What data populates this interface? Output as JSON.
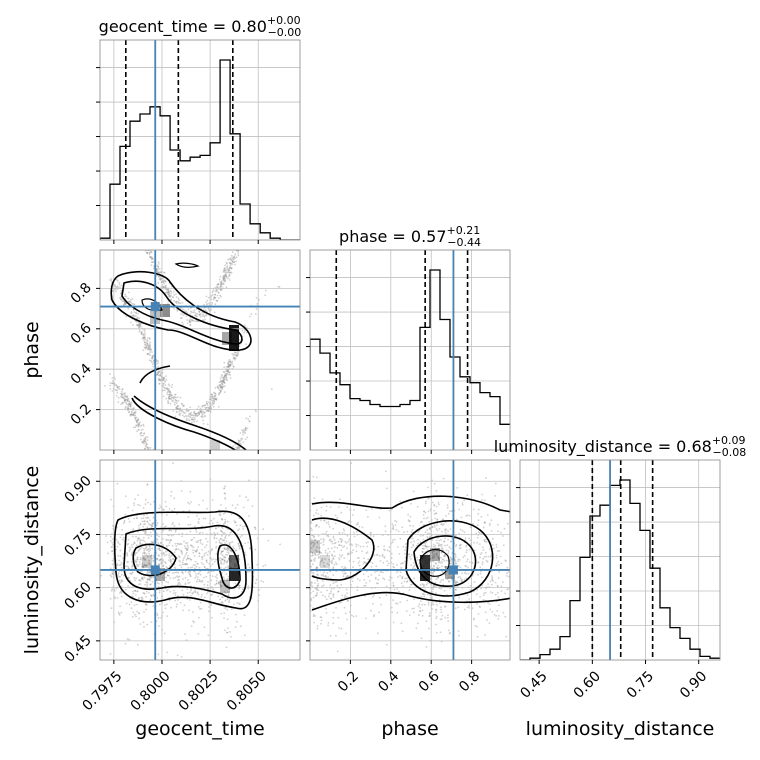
{
  "chart_data": {
    "type": "corner",
    "parameters": [
      "geocent_time",
      "phase",
      "luminosity_distance"
    ],
    "truths": {
      "geocent_time": 0.79965,
      "phase": 0.71,
      "luminosity_distance": 0.65
    },
    "colors": {
      "truth": "#4682b4",
      "hist": "#000000",
      "grid": "#c0c0c0",
      "points": "#999999"
    },
    "titles": [
      {
        "param": "geocent_time",
        "text": "geocent_time = 0.80",
        "sup": "+0.00",
        "sub": "−0.00"
      },
      {
        "param": "phase",
        "text": "phase = 0.57",
        "sup": "+0.21",
        "sub": "−0.44"
      },
      {
        "param": "luminosity_distance",
        "text": "luminosity_distance = 0.68",
        "sup": "+0.09",
        "sub": "−0.08"
      }
    ],
    "axis_ranges": {
      "geocent_time": [
        0.79678,
        0.80717
      ],
      "phase": [
        0.0,
        0.99
      ],
      "luminosity_distance": [
        0.396,
        0.96
      ]
    },
    "axis_labels": {
      "x": [
        "geocent_time",
        "phase",
        "luminosity_distance"
      ],
      "y": [
        "",
        "phase",
        "luminosity_distance"
      ]
    },
    "ticks": {
      "geocent_time": {
        "values": [
          0.7975,
          0.8,
          0.8025,
          0.805
        ],
        "labels": [
          "0.7975",
          "0.8000",
          "0.8025",
          "0.8050"
        ]
      },
      "phase": {
        "values": [
          0.2,
          0.4,
          0.6,
          0.8
        ],
        "labels": [
          "0.2",
          "0.4",
          "0.6",
          "0.8"
        ]
      },
      "luminosity_distance": {
        "values": [
          0.45,
          0.6,
          0.75,
          0.9
        ],
        "labels": [
          "0.45",
          "0.60",
          "0.75",
          "0.90"
        ]
      }
    },
    "quantiles": {
      "geocent_time": [
        0.79812,
        0.80085,
        0.80368
      ],
      "phase": [
        0.13,
        0.57,
        0.78
      ],
      "luminosity_distance": [
        0.6,
        0.68,
        0.77
      ]
    },
    "histograms": {
      "geocent_time": {
        "edges": [
          0.79678,
          0.7973,
          0.79782,
          0.79834,
          0.79886,
          0.79938,
          0.7999,
          0.80042,
          0.80094,
          0.80146,
          0.80198,
          0.8025,
          0.80302,
          0.80354,
          0.80406,
          0.80458,
          0.8051,
          0.80562,
          0.80614,
          0.80666,
          0.80717
        ],
        "counts": [
          0.01,
          0.31,
          0.52,
          0.66,
          0.7,
          0.74,
          0.69,
          0.5,
          0.44,
          0.46,
          0.47,
          0.54,
          1.0,
          0.59,
          0.2,
          0.09,
          0.04,
          0.01,
          0.0,
          0.0
        ]
      },
      "phase": {
        "edges": [
          0.0,
          0.0495,
          0.099,
          0.1485,
          0.198,
          0.2475,
          0.297,
          0.3465,
          0.396,
          0.4455,
          0.495,
          0.5445,
          0.594,
          0.6435,
          0.693,
          0.7425,
          0.792,
          0.8415,
          0.891,
          0.9405,
          0.99
        ],
        "counts": [
          0.56,
          0.49,
          0.39,
          0.33,
          0.26,
          0.25,
          0.23,
          0.22,
          0.22,
          0.23,
          0.25,
          0.62,
          0.91,
          0.66,
          0.47,
          0.37,
          0.34,
          0.29,
          0.27,
          0.13
        ]
      },
      "luminosity_distance": {
        "edges": [
          0.396,
          0.4242,
          0.4524,
          0.4806,
          0.5088,
          0.537,
          0.5652,
          0.5934,
          0.6216,
          0.6498,
          0.678,
          0.7062,
          0.7344,
          0.7626,
          0.7908,
          0.819,
          0.8472,
          0.8754,
          0.9036,
          0.9318,
          0.96
        ],
        "counts": [
          0.0,
          0.01,
          0.03,
          0.06,
          0.13,
          0.33,
          0.57,
          0.8,
          0.86,
          0.97,
          1.0,
          0.87,
          0.72,
          0.51,
          0.29,
          0.18,
          0.12,
          0.06,
          0.02,
          0.01
        ]
      }
    }
  }
}
